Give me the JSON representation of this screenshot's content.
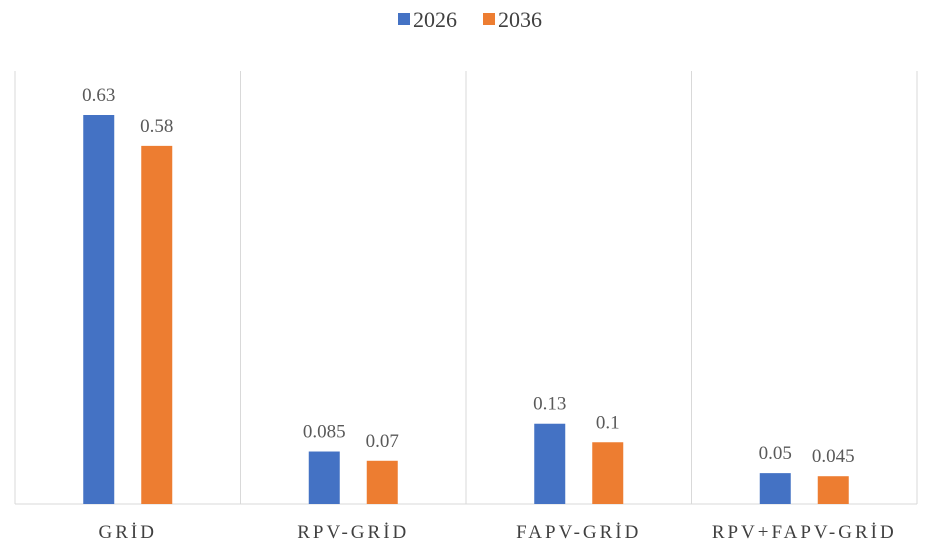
{
  "chart_data": {
    "type": "bar",
    "categories": [
      "GRİD",
      "RPV-GRİD",
      "FAPV-GRİD",
      "RPV+FAPV-GRİD"
    ],
    "series": [
      {
        "name": "2026",
        "color": "#4472C4",
        "values": [
          0.63,
          0.085,
          0.13,
          0.05
        ],
        "labels": [
          "0.63",
          "0.085",
          "0.13",
          "0.05"
        ]
      },
      {
        "name": "2036",
        "color": "#ED7D31",
        "values": [
          0.58,
          0.07,
          0.1,
          0.045
        ],
        "labels": [
          "0.58",
          "0.07",
          "0.1",
          "0.045"
        ]
      }
    ],
    "ylim": [
      0,
      0.7
    ],
    "grid": "vertical category separators",
    "legend": "top-center"
  }
}
